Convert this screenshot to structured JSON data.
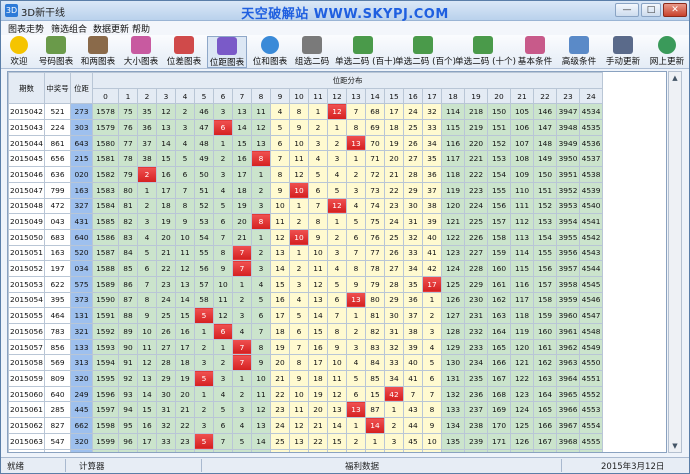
{
  "window": {
    "title": "3D新干线",
    "banner": "天空破解站 WWW.SKYPJ.COM",
    "btn_min": "—",
    "btn_max": "□",
    "btn_close": "✕"
  },
  "menu": [
    "图表走势",
    "筛选组合",
    "数据更新",
    "帮助"
  ],
  "toolbar": [
    {
      "label": "欢迎",
      "icon": "smiley-icon",
      "color": "#f5c400"
    },
    {
      "label": "号码图表",
      "icon": "chart-doc-icon",
      "color": "#6a9a4a"
    },
    {
      "label": "和两图表",
      "icon": "chart-doc-icon",
      "color": "#8a6a4a"
    },
    {
      "label": "大小图表",
      "icon": "bar-chart-icon",
      "color": "#c85aa0"
    },
    {
      "label": "位差图表",
      "icon": "bar-chart-icon",
      "color": "#d04a4a"
    },
    {
      "label": "位距图表",
      "icon": "bar-chart-icon",
      "color": "#7a5ac8"
    },
    {
      "label": "位和图表",
      "icon": "pie-chart-icon",
      "color": "#3a8ad8"
    },
    {
      "label": "组选二码",
      "icon": "pencil-icon",
      "color": "#7a7a7a"
    },
    {
      "label": "单选二码 (百十)",
      "icon": "grid-icon",
      "color": "#4a9a4a"
    },
    {
      "label": "单选二码 (百个)",
      "icon": "grid-icon",
      "color": "#4a9a4a"
    },
    {
      "label": "单选二码 (十个)",
      "icon": "grid-icon",
      "color": "#4a9a4a"
    },
    {
      "label": "基本条件",
      "icon": "gallery-icon",
      "color": "#c85a8a"
    },
    {
      "label": "高级条件",
      "icon": "gallery-icon",
      "color": "#5a8ac8"
    },
    {
      "label": "手动更新",
      "icon": "tools-icon",
      "color": "#5a6a8a"
    },
    {
      "label": "网上更新",
      "icon": "globe-icon",
      "color": "#3a9a5a"
    }
  ],
  "active_toolbar_index": 5,
  "table": {
    "head_fixed": [
      "期数",
      "中奖号",
      "位距"
    ],
    "group_header": "位距分布",
    "columns": [
      "0",
      "1",
      "2",
      "3",
      "4",
      "5",
      "6",
      "7",
      "8",
      "9",
      "10",
      "11",
      "12",
      "13",
      "14",
      "15",
      "16",
      "17",
      "18",
      "19",
      "20",
      "21",
      "22",
      "23",
      "24"
    ],
    "rows": [
      {
        "period": "2015042",
        "num": "521",
        "gap": "273",
        "cells": [
          "1578",
          "75",
          "35",
          "12",
          "2",
          "46",
          "3",
          "13",
          "11",
          "4",
          "8",
          "1",
          "12",
          "7",
          "68",
          "17",
          "24",
          "32",
          "114",
          "218",
          "150",
          "105",
          "146",
          "3947",
          "4534"
        ],
        "hit": 12
      },
      {
        "period": "2015043",
        "num": "224",
        "gap": "303",
        "cells": [
          "1579",
          "76",
          "36",
          "13",
          "3",
          "47",
          "6",
          "14",
          "12",
          "5",
          "9",
          "2",
          "1",
          "8",
          "69",
          "18",
          "25",
          "33",
          "115",
          "219",
          "151",
          "106",
          "147",
          "3948",
          "4535"
        ],
        "hit": 6
      },
      {
        "period": "2015044",
        "num": "861",
        "gap": "643",
        "cells": [
          "1580",
          "77",
          "37",
          "14",
          "4",
          "48",
          "1",
          "15",
          "13",
          "6",
          "10",
          "3",
          "2",
          "13",
          "70",
          "19",
          "26",
          "34",
          "116",
          "220",
          "152",
          "107",
          "148",
          "3949",
          "4536"
        ],
        "hit": 13
      },
      {
        "period": "2015045",
        "num": "656",
        "gap": "215",
        "cells": [
          "1581",
          "78",
          "38",
          "15",
          "5",
          "49",
          "2",
          "16",
          "8",
          "7",
          "11",
          "4",
          "3",
          "1",
          "71",
          "20",
          "27",
          "35",
          "117",
          "221",
          "153",
          "108",
          "149",
          "3950",
          "4537"
        ],
        "hit": 8
      },
      {
        "period": "2015046",
        "num": "636",
        "gap": "020",
        "cells": [
          "1582",
          "79",
          "2",
          "16",
          "6",
          "50",
          "3",
          "17",
          "1",
          "8",
          "12",
          "5",
          "4",
          "2",
          "72",
          "21",
          "28",
          "36",
          "118",
          "222",
          "154",
          "109",
          "150",
          "3951",
          "4538"
        ],
        "hit": 2
      },
      {
        "period": "2015047",
        "num": "799",
        "gap": "163",
        "cells": [
          "1583",
          "80",
          "1",
          "17",
          "7",
          "51",
          "4",
          "18",
          "2",
          "9",
          "10",
          "6",
          "5",
          "3",
          "73",
          "22",
          "29",
          "37",
          "119",
          "223",
          "155",
          "110",
          "151",
          "3952",
          "4539"
        ],
        "hit": 10
      },
      {
        "period": "2015048",
        "num": "472",
        "gap": "327",
        "cells": [
          "1584",
          "81",
          "2",
          "18",
          "8",
          "52",
          "5",
          "19",
          "3",
          "10",
          "1",
          "7",
          "12",
          "4",
          "74",
          "23",
          "30",
          "38",
          "120",
          "224",
          "156",
          "111",
          "152",
          "3953",
          "4540"
        ],
        "hit": 12
      },
      {
        "period": "2015049",
        "num": "043",
        "gap": "431",
        "cells": [
          "1585",
          "82",
          "3",
          "19",
          "9",
          "53",
          "6",
          "20",
          "8",
          "11",
          "2",
          "8",
          "1",
          "5",
          "75",
          "24",
          "31",
          "39",
          "121",
          "225",
          "157",
          "112",
          "153",
          "3954",
          "4541"
        ],
        "hit": 8
      },
      {
        "period": "2015050",
        "num": "683",
        "gap": "640",
        "cells": [
          "1586",
          "83",
          "4",
          "20",
          "10",
          "54",
          "7",
          "21",
          "1",
          "12",
          "10",
          "9",
          "2",
          "6",
          "76",
          "25",
          "32",
          "40",
          "122",
          "226",
          "158",
          "113",
          "154",
          "3955",
          "4542"
        ],
        "hit": 10
      },
      {
        "period": "2015051",
        "num": "163",
        "gap": "520",
        "cells": [
          "1587",
          "84",
          "5",
          "21",
          "11",
          "55",
          "8",
          "7",
          "2",
          "13",
          "1",
          "10",
          "3",
          "7",
          "77",
          "26",
          "33",
          "41",
          "123",
          "227",
          "159",
          "114",
          "155",
          "3956",
          "4543"
        ],
        "hit": 7
      },
      {
        "period": "2015052",
        "num": "197",
        "gap": "034",
        "cells": [
          "1588",
          "85",
          "6",
          "22",
          "12",
          "56",
          "9",
          "7",
          "3",
          "14",
          "2",
          "11",
          "4",
          "8",
          "78",
          "27",
          "34",
          "42",
          "124",
          "228",
          "160",
          "115",
          "156",
          "3957",
          "4544"
        ],
        "hit": 7
      },
      {
        "period": "2015053",
        "num": "622",
        "gap": "575",
        "cells": [
          "1589",
          "86",
          "7",
          "23",
          "13",
          "57",
          "10",
          "1",
          "4",
          "15",
          "3",
          "12",
          "5",
          "9",
          "79",
          "28",
          "35",
          "17",
          "125",
          "229",
          "161",
          "116",
          "157",
          "3958",
          "4545"
        ],
        "hit": 17
      },
      {
        "period": "2015054",
        "num": "395",
        "gap": "373",
        "cells": [
          "1590",
          "87",
          "8",
          "24",
          "14",
          "58",
          "11",
          "2",
          "5",
          "16",
          "4",
          "13",
          "6",
          "13",
          "80",
          "29",
          "36",
          "1",
          "126",
          "230",
          "162",
          "117",
          "158",
          "3959",
          "4546"
        ],
        "hit": 13
      },
      {
        "period": "2015055",
        "num": "464",
        "gap": "131",
        "cells": [
          "1591",
          "88",
          "9",
          "25",
          "15",
          "5",
          "12",
          "3",
          "6",
          "17",
          "5",
          "14",
          "7",
          "1",
          "81",
          "30",
          "37",
          "2",
          "127",
          "231",
          "163",
          "118",
          "159",
          "3960",
          "4547"
        ],
        "hit": 5
      },
      {
        "period": "2015056",
        "num": "783",
        "gap": "321",
        "cells": [
          "1592",
          "89",
          "10",
          "26",
          "16",
          "1",
          "6",
          "4",
          "7",
          "18",
          "6",
          "15",
          "8",
          "2",
          "82",
          "31",
          "38",
          "3",
          "128",
          "232",
          "164",
          "119",
          "160",
          "3961",
          "4548"
        ],
        "hit": 6
      },
      {
        "period": "2015057",
        "num": "856",
        "gap": "133",
        "cells": [
          "1593",
          "90",
          "11",
          "27",
          "17",
          "2",
          "1",
          "7",
          "8",
          "19",
          "7",
          "16",
          "9",
          "3",
          "83",
          "32",
          "39",
          "4",
          "129",
          "233",
          "165",
          "120",
          "161",
          "3962",
          "4549"
        ],
        "hit": 7
      },
      {
        "period": "2015058",
        "num": "569",
        "gap": "313",
        "cells": [
          "1594",
          "91",
          "12",
          "28",
          "18",
          "3",
          "2",
          "7",
          "9",
          "20",
          "8",
          "17",
          "10",
          "4",
          "84",
          "33",
          "40",
          "5",
          "130",
          "234",
          "166",
          "121",
          "162",
          "3963",
          "4550"
        ],
        "hit": 7
      },
      {
        "period": "2015059",
        "num": "809",
        "gap": "320",
        "cells": [
          "1595",
          "92",
          "13",
          "29",
          "19",
          "5",
          "3",
          "1",
          "10",
          "21",
          "9",
          "18",
          "11",
          "5",
          "85",
          "34",
          "41",
          "6",
          "131",
          "235",
          "167",
          "122",
          "163",
          "3964",
          "4551"
        ],
        "hit": 5
      },
      {
        "period": "2015060",
        "num": "640",
        "gap": "249",
        "cells": [
          "1596",
          "93",
          "14",
          "30",
          "20",
          "1",
          "4",
          "2",
          "11",
          "22",
          "10",
          "19",
          "12",
          "6",
          "15",
          "42",
          "7",
          "7",
          "132",
          "236",
          "168",
          "123",
          "164",
          "3965",
          "4552"
        ],
        "hit": 15
      },
      {
        "period": "2015061",
        "num": "285",
        "gap": "445",
        "cells": [
          "1597",
          "94",
          "15",
          "31",
          "21",
          "2",
          "5",
          "3",
          "12",
          "23",
          "11",
          "20",
          "13",
          "13",
          "87",
          "1",
          "43",
          "8",
          "133",
          "237",
          "169",
          "124",
          "165",
          "3966",
          "4553"
        ],
        "hit": 13
      },
      {
        "period": "2015062",
        "num": "827",
        "gap": "662",
        "cells": [
          "1598",
          "95",
          "16",
          "32",
          "22",
          "3",
          "6",
          "4",
          "13",
          "24",
          "12",
          "21",
          "14",
          "1",
          "14",
          "2",
          "44",
          "9",
          "134",
          "238",
          "170",
          "125",
          "166",
          "3967",
          "4554"
        ],
        "hit": 14
      },
      {
        "period": "2015063",
        "num": "547",
        "gap": "320",
        "cells": [
          "1599",
          "96",
          "17",
          "33",
          "23",
          "5",
          "7",
          "5",
          "14",
          "25",
          "13",
          "22",
          "15",
          "2",
          "1",
          "3",
          "45",
          "10",
          "135",
          "239",
          "171",
          "126",
          "167",
          "3968",
          "4555"
        ],
        "hit": 5
      }
    ]
  },
  "status": {
    "ready": "就绪",
    "calc": "计算器",
    "data": "福利数据",
    "date": "2015年3月12日"
  }
}
